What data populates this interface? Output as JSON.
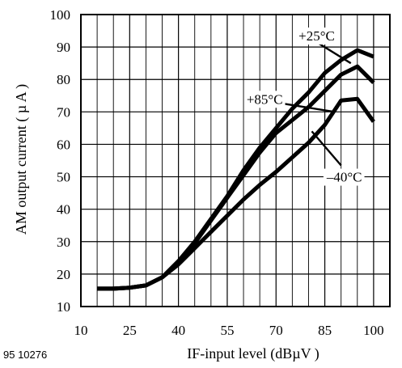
{
  "figure_id": "95 10276",
  "chart_data": {
    "type": "line",
    "title": "",
    "xlabel": "IF-input level (dBµV )",
    "ylabel": "AM output current ( µ A )",
    "xlim": [
      10,
      105
    ],
    "ylim": [
      10,
      100
    ],
    "x_ticks": [
      10,
      25,
      40,
      55,
      70,
      85,
      100
    ],
    "y_ticks": [
      10,
      20,
      30,
      40,
      50,
      60,
      70,
      80,
      90,
      100
    ],
    "grid": true,
    "series": [
      {
        "name": "+25°C",
        "x": [
          15,
          20,
          25,
          30,
          35,
          40,
          45,
          50,
          55,
          60,
          65,
          70,
          75,
          80,
          85,
          90,
          95,
          100
        ],
        "y": [
          15.5,
          15.5,
          15.8,
          16.5,
          19,
          24,
          30,
          37,
          44,
          52,
          59,
          65,
          71,
          76,
          82,
          86,
          89,
          87
        ]
      },
      {
        "name": "+85°C",
        "x": [
          15,
          20,
          25,
          30,
          35,
          40,
          45,
          50,
          55,
          60,
          65,
          70,
          75,
          80,
          85,
          90,
          95,
          100
        ],
        "y": [
          15.5,
          15.5,
          15.8,
          16.5,
          19,
          23.5,
          29.5,
          36.5,
          43.5,
          50.5,
          57.5,
          63.5,
          67.5,
          71.5,
          76.5,
          81.5,
          84,
          79
        ]
      },
      {
        "name": "–40°C",
        "x": [
          15,
          20,
          25,
          30,
          35,
          40,
          45,
          50,
          55,
          60,
          65,
          70,
          75,
          80,
          85,
          90,
          95,
          100
        ],
        "y": [
          15.5,
          15.5,
          15.8,
          16.5,
          19,
          23,
          28,
          33,
          38,
          43,
          47.5,
          51.5,
          56,
          60.5,
          66,
          73.5,
          74,
          67
        ]
      }
    ],
    "annotations": [
      {
        "text": "+25°C",
        "x": 82.5,
        "y": 93.5
      },
      {
        "text": "+85°C",
        "x": 66.5,
        "y": 74
      },
      {
        "text": "–40°C",
        "x": 91,
        "y": 50
      }
    ]
  }
}
